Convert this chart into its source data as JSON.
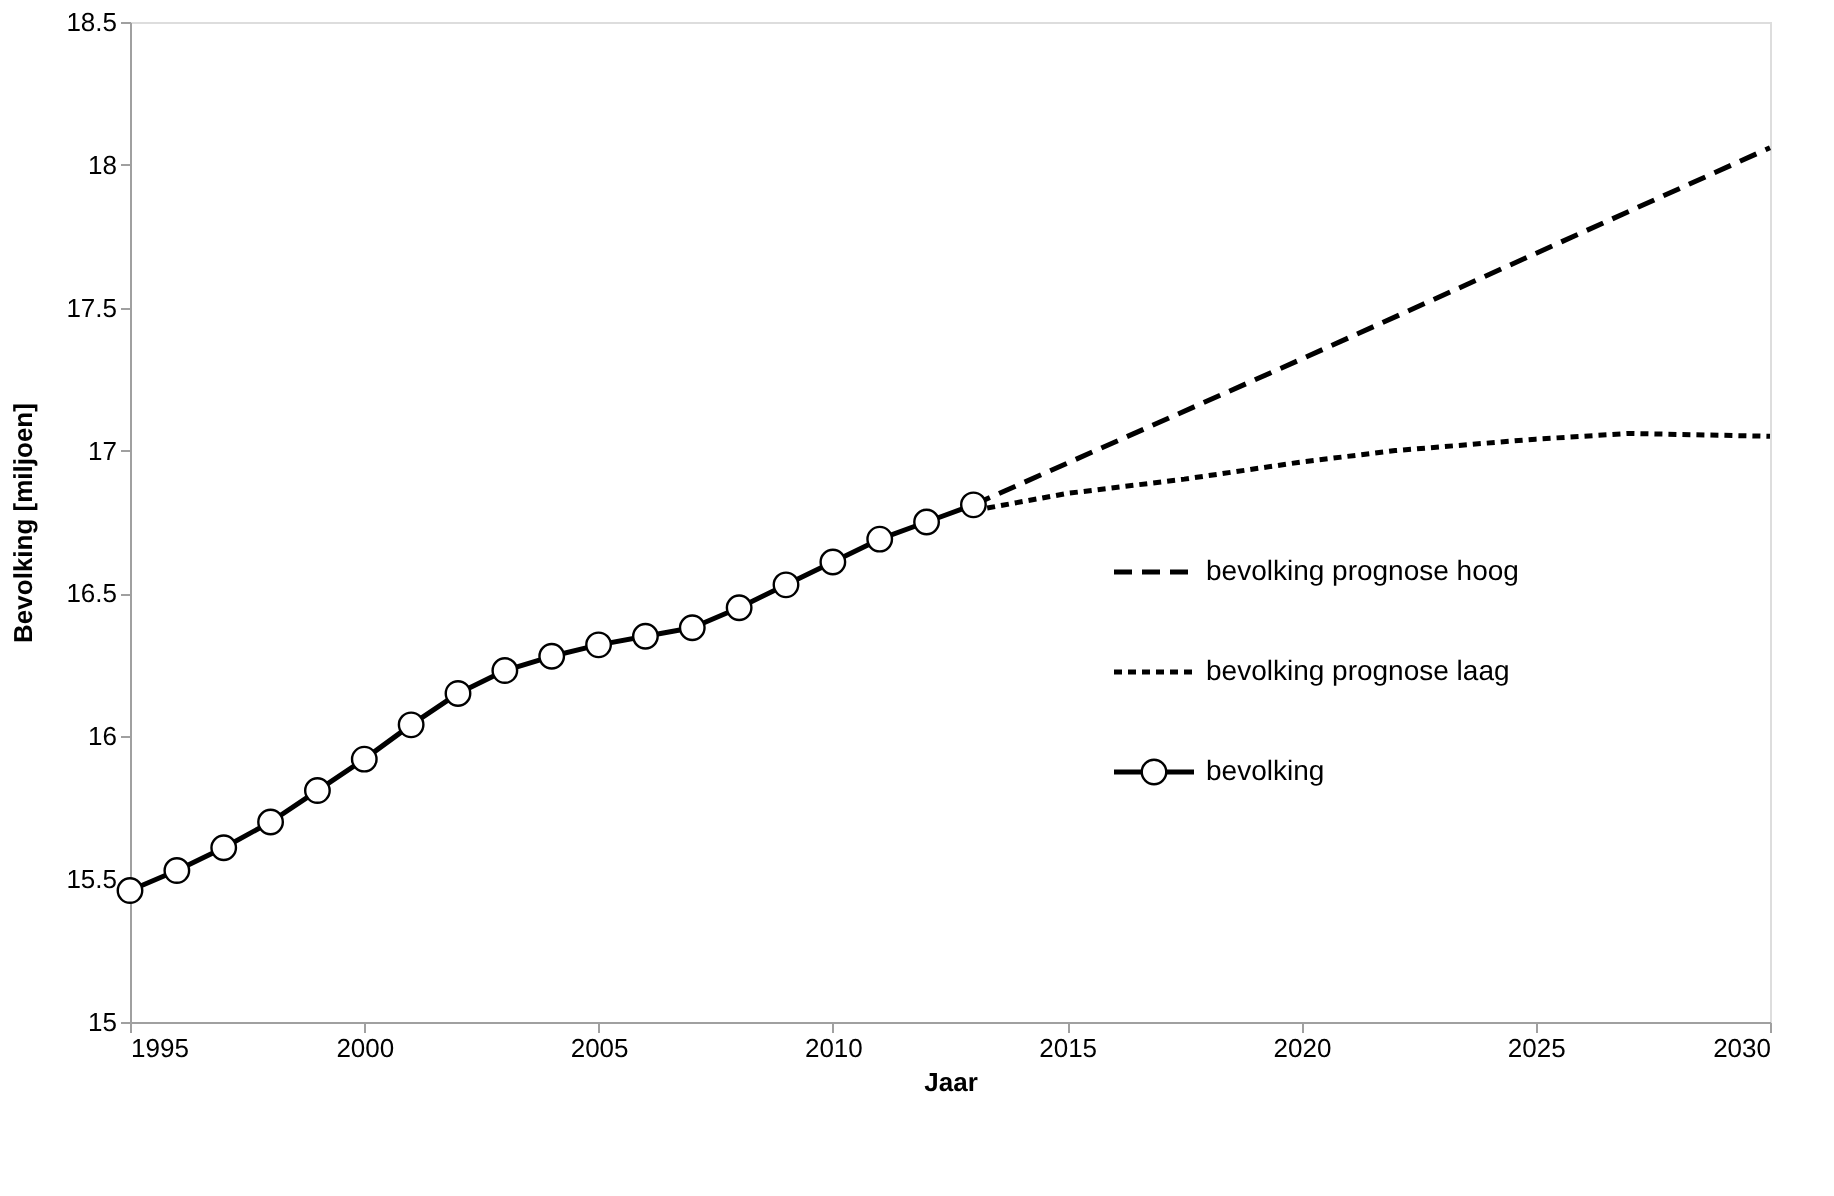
{
  "chart_data": {
    "type": "line",
    "xlabel": "Jaar",
    "ylabel": "Bevolking  [miljoen]",
    "xlim": [
      1995,
      2030
    ],
    "xticks": [
      1995,
      2000,
      2005,
      2010,
      2015,
      2020,
      2025,
      2030
    ],
    "ylim": [
      15,
      18.5
    ],
    "yticks": [
      15,
      15.5,
      16,
      16.5,
      17,
      17.5,
      18,
      18.5
    ],
    "grid": false,
    "legend": "right",
    "series": [
      {
        "name": "bevolking prognose hoog",
        "color": "#000000",
        "line_style": "dashed",
        "marker": "none",
        "x": [
          2013,
          2020,
          2030
        ],
        "values": [
          16.81,
          17.32,
          18.06
        ]
      },
      {
        "name": "bevolking prognose laag",
        "color": "#000000",
        "line_style": "dotted",
        "marker": "none",
        "x": [
          2013,
          2015,
          2017.5,
          2020,
          2022,
          2025,
          2027,
          2030
        ],
        "values": [
          16.79,
          16.85,
          16.9,
          16.96,
          17.0,
          17.04,
          17.06,
          17.05
        ]
      },
      {
        "name": "bevolking",
        "color": "#000000",
        "line_style": "solid",
        "marker": "circle",
        "x": [
          1995,
          1996,
          1997,
          1998,
          1999,
          2000,
          2001,
          2002,
          2003,
          2004,
          2005,
          2006,
          2007,
          2008,
          2009,
          2010,
          2011,
          2012,
          2013
        ],
        "values": [
          15.46,
          15.53,
          15.61,
          15.7,
          15.81,
          15.92,
          16.04,
          16.15,
          16.23,
          16.28,
          16.32,
          16.35,
          16.38,
          16.45,
          16.53,
          16.61,
          16.69,
          16.75,
          16.81
        ]
      }
    ]
  }
}
